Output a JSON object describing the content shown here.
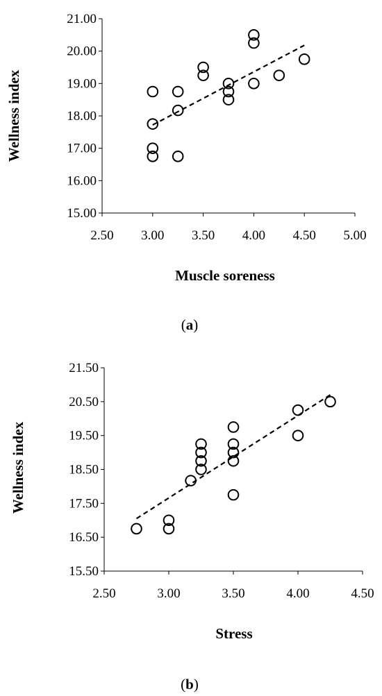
{
  "chart_data": [
    {
      "type": "scatter",
      "caption_letter": "a",
      "xlabel": "Muscle soreness",
      "ylabel": "Wellness index",
      "xlim": [
        2.5,
        5.0
      ],
      "ylim": [
        15.0,
        21.0
      ],
      "xticks": [
        "2.50",
        "3.00",
        "3.50",
        "4.00",
        "4.50",
        "5.00"
      ],
      "yticks": [
        "15.00",
        "16.00",
        "17.00",
        "18.00",
        "19.00",
        "20.00",
        "21.00"
      ],
      "grid": false,
      "marker": "open-circle",
      "points": [
        [
          3.0,
          18.75
        ],
        [
          3.0,
          17.75
        ],
        [
          3.0,
          17.0
        ],
        [
          3.0,
          16.75
        ],
        [
          3.25,
          18.75
        ],
        [
          3.25,
          18.17
        ],
        [
          3.25,
          16.75
        ],
        [
          3.5,
          19.5
        ],
        [
          3.5,
          19.25
        ],
        [
          3.75,
          19.0
        ],
        [
          3.75,
          18.75
        ],
        [
          3.75,
          18.5
        ],
        [
          4.0,
          20.5
        ],
        [
          4.0,
          20.25
        ],
        [
          4.0,
          19.0
        ],
        [
          4.25,
          19.25
        ],
        [
          4.5,
          19.75
        ]
      ],
      "trendline": {
        "style": "dashed",
        "x": [
          3.0,
          4.5
        ],
        "y": [
          17.72,
          20.18
        ]
      }
    },
    {
      "type": "scatter",
      "caption_letter": "b",
      "xlabel": "Stress",
      "ylabel": "Wellness index",
      "xlim": [
        2.5,
        4.5
      ],
      "ylim": [
        15.5,
        21.5
      ],
      "xticks": [
        "2.50",
        "3.00",
        "3.50",
        "4.00",
        "4.50"
      ],
      "yticks": [
        "15.50",
        "16.50",
        "17.50",
        "18.50",
        "19.50",
        "20.50",
        "21.50"
      ],
      "grid": false,
      "marker": "open-circle",
      "points": [
        [
          2.75,
          16.75
        ],
        [
          3.0,
          17.0
        ],
        [
          3.0,
          16.75
        ],
        [
          3.17,
          18.17
        ],
        [
          3.25,
          19.25
        ],
        [
          3.25,
          19.0
        ],
        [
          3.25,
          18.75
        ],
        [
          3.25,
          18.5
        ],
        [
          3.5,
          19.75
        ],
        [
          3.5,
          19.25
        ],
        [
          3.5,
          19.0
        ],
        [
          3.5,
          18.75
        ],
        [
          3.5,
          17.75
        ],
        [
          4.0,
          20.25
        ],
        [
          4.0,
          19.5
        ],
        [
          4.25,
          20.5
        ]
      ],
      "trendline": {
        "style": "dashed",
        "x": [
          2.75,
          4.25
        ],
        "y": [
          17.05,
          20.7
        ]
      }
    }
  ]
}
